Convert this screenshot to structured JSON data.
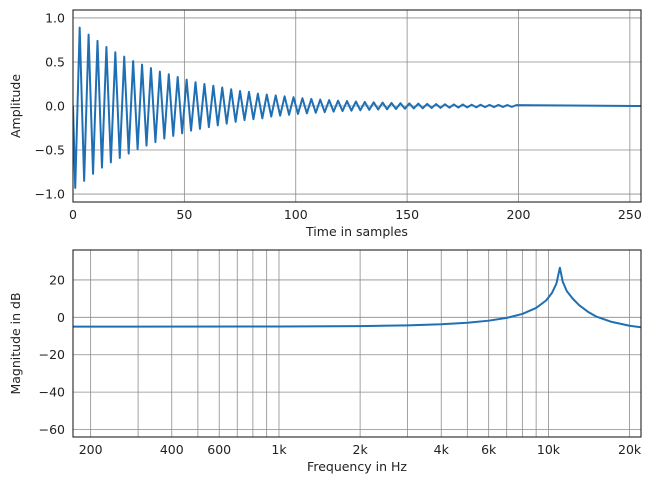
{
  "colors": {
    "line": "#1f6fb4",
    "grid": "#8c8c8c",
    "frame": "#222222"
  },
  "chart_data": [
    {
      "type": "line",
      "xlabel": "Time in samples",
      "ylabel": "Amplitude",
      "xlim": [
        0,
        255
      ],
      "ylim": [
        -1.09,
        1.09
      ],
      "xticks": [
        0,
        50,
        100,
        150,
        200,
        250
      ],
      "xticklabels": [
        "0",
        "50",
        "100",
        "150",
        "200",
        "250"
      ],
      "yticks": [
        -1.0,
        -0.5,
        0.0,
        0.5,
        1.0
      ],
      "yticklabels": [
        "−1.0",
        "−0.5",
        "0.0",
        "0.5",
        "1.0"
      ],
      "grid": true,
      "series": [
        {
          "x": [
            0,
            1,
            3,
            5,
            7,
            9,
            11,
            13,
            15,
            17,
            19,
            21,
            23,
            25,
            27,
            29,
            31,
            33,
            35,
            37,
            39,
            41,
            43,
            45,
            47,
            49,
            51,
            53,
            55,
            57,
            59,
            61,
            63,
            65,
            67,
            69,
            71,
            73,
            75,
            77,
            79,
            81,
            83,
            85,
            87,
            89,
            91,
            93,
            95,
            97,
            99,
            101,
            103,
            105,
            107,
            109,
            111,
            113,
            115,
            117,
            119,
            121,
            123,
            125,
            127,
            129,
            131,
            133,
            135,
            137,
            139,
            141,
            143,
            145,
            147,
            149,
            151,
            153,
            155,
            157,
            159,
            161,
            163,
            165,
            167,
            169,
            171,
            173,
            175,
            177,
            179,
            181,
            183,
            185,
            187,
            189,
            191,
            193,
            195,
            197,
            199,
            255
          ],
          "y": [
            0,
            -0.93,
            0.89,
            -0.85,
            0.81,
            -0.77,
            0.74,
            -0.7,
            0.67,
            -0.64,
            0.61,
            -0.59,
            0.56,
            -0.54,
            0.51,
            -0.49,
            0.47,
            -0.45,
            0.43,
            -0.41,
            0.39,
            -0.37,
            0.36,
            -0.34,
            0.33,
            -0.31,
            0.3,
            -0.28,
            0.27,
            -0.26,
            0.25,
            -0.24,
            0.23,
            -0.22,
            0.21,
            -0.2,
            0.19,
            -0.18,
            0.17,
            -0.16,
            0.16,
            -0.15,
            0.14,
            -0.14,
            0.13,
            -0.12,
            0.12,
            -0.11,
            0.11,
            -0.1,
            0.1,
            -0.09,
            0.088,
            -0.084,
            0.08,
            -0.077,
            0.073,
            -0.07,
            0.067,
            -0.064,
            0.061,
            -0.058,
            0.056,
            -0.053,
            0.051,
            -0.049,
            0.046,
            -0.044,
            0.042,
            -0.04,
            0.039,
            -0.037,
            0.035,
            -0.034,
            0.032,
            -0.031,
            0.029,
            -0.028,
            0.027,
            -0.026,
            0.024,
            -0.023,
            0.022,
            -0.021,
            0.02,
            -0.019,
            0.018,
            -0.018,
            0.017,
            -0.016,
            0.015,
            -0.015,
            0.014,
            -0.013,
            0.013,
            -0.012,
            0.012,
            -0.011,
            0.011,
            -0.01,
            0.01,
            0
          ]
        }
      ]
    },
    {
      "type": "line",
      "xlabel": "Frequency in Hz",
      "ylabel": "Magnitude in dB",
      "xscale": "log",
      "xlim": [
        172,
        22050
      ],
      "ylim": [
        -64,
        36
      ],
      "xticks": [
        200,
        400,
        600,
        1000,
        2000,
        4000,
        6000,
        10000,
        20000
      ],
      "xticklabels": [
        "200",
        "400",
        "600",
        "1k",
        "2k",
        "4k",
        "6k",
        "10k",
        "20k"
      ],
      "xgrid": [
        200,
        300,
        400,
        500,
        600,
        700,
        800,
        900,
        1000,
        2000,
        3000,
        4000,
        5000,
        6000,
        7000,
        8000,
        9000,
        10000,
        20000
      ],
      "yticks": [
        -60,
        -40,
        -20,
        0,
        20
      ],
      "yticklabels": [
        "−60",
        "−40",
        "−20",
        "0",
        "20"
      ],
      "grid": true,
      "series": [
        {
          "x": [
            172,
            1000,
            2000,
            3000,
            4000,
            5000,
            6000,
            7000,
            8000,
            9000,
            9800,
            10300,
            10700,
            11025,
            11300,
            11700,
            12300,
            13000,
            14000,
            15000,
            17000,
            20000,
            22050
          ],
          "y": [
            -5,
            -4.9,
            -4.7,
            -4.3,
            -3.7,
            -2.9,
            -1.8,
            -0.3,
            1.8,
            5,
            9,
            13,
            18,
            26.5,
            19,
            14,
            10,
            6.5,
            3,
            0.5,
            -2.3,
            -4.5,
            -5.3
          ]
        }
      ]
    }
  ]
}
